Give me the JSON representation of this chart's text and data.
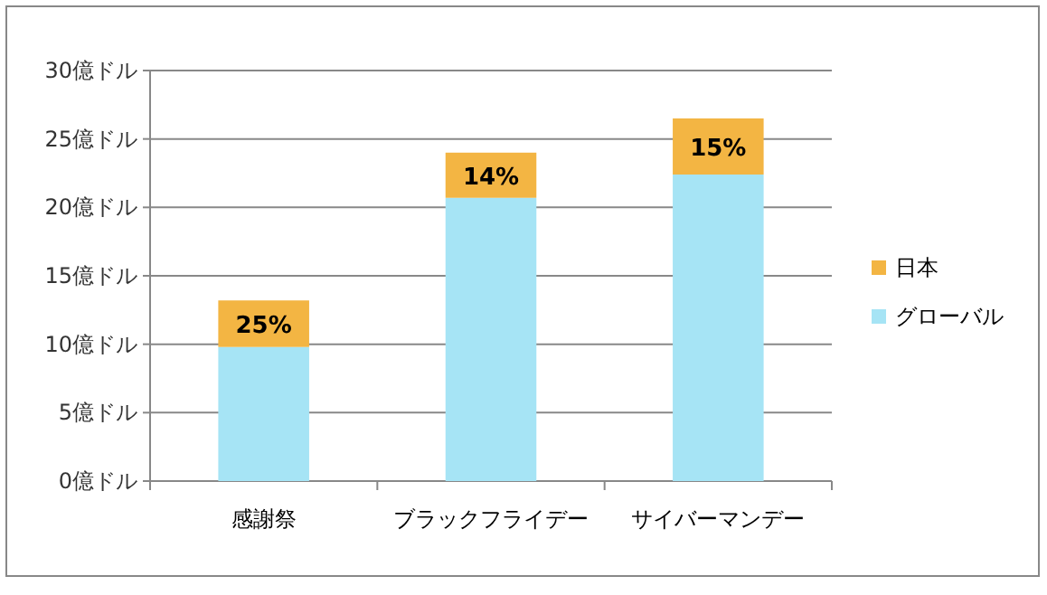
{
  "chart_data": {
    "type": "bar",
    "stacked": true,
    "categories": [
      "感謝祭",
      "ブラックフライデー",
      "サイバーマンデー"
    ],
    "series": [
      {
        "name": "グローバル",
        "color": "#a6e4f5",
        "values": [
          9.8,
          20.7,
          22.4
        ]
      },
      {
        "name": "日本",
        "color": "#f3b543",
        "values": [
          3.4,
          3.3,
          4.1
        ]
      }
    ],
    "annotations": [
      "25%",
      "14%",
      "15%"
    ],
    "ylim": [
      0,
      30
    ],
    "yticks": [
      {
        "value": 0,
        "label": "0億ドル"
      },
      {
        "value": 5,
        "label": "5億ドル"
      },
      {
        "value": 10,
        "label": "10億ドル"
      },
      {
        "value": 15,
        "label": "15億ドル"
      },
      {
        "value": 20,
        "label": "20億ドル"
      },
      {
        "value": 25,
        "label": "25億ドル"
      },
      {
        "value": 30,
        "label": "30億ドル"
      }
    ],
    "grid": "y",
    "legend": "right"
  }
}
